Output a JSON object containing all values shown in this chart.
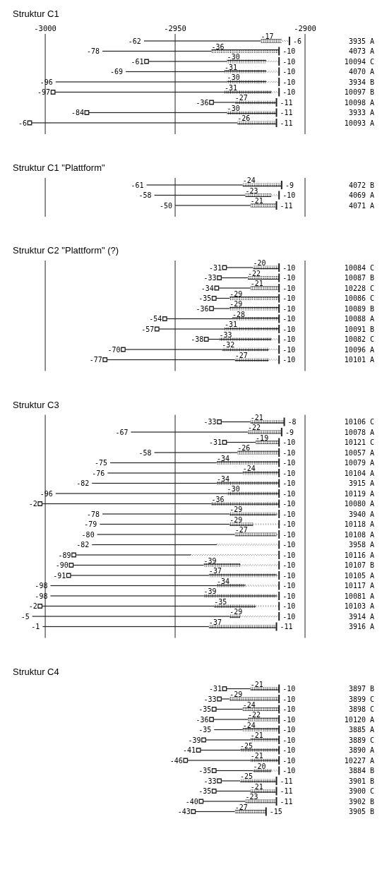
{
  "chart_data": [
    {
      "type": "bar",
      "title": "Struktur C1",
      "xlim": [
        -3006,
        -2900
      ],
      "orientation": "horizontal",
      "grid": "x",
      "xticks": [
        -3000,
        -2950,
        -2900
      ],
      "categories": [
        "3935 A",
        "4073 A",
        "10094 C",
        "4070 A",
        "3934 B",
        "10097 B",
        "10098 A",
        "3933 A",
        "10093 A"
      ],
      "series": [
        {
          "color": "#222222",
          "line_style": "solid",
          "base": [
            -2962,
            -2978,
            -2961,
            -2969,
            -2996,
            -2997,
            -2936,
            -2984,
            -3006
          ],
          "values": [
            45,
            42,
            31,
            38,
            66,
            66,
            9,
            54,
            80
          ]
        },
        {
          "color": "#222222",
          "marker": "cross",
          "base": [
            -2917,
            -2936,
            -2930,
            -2931,
            -2930,
            -2931,
            -2927,
            -2930,
            -2926
          ],
          "values": [
            8,
            26,
            15,
            16,
            15,
            18,
            16,
            19,
            15
          ]
        },
        {
          "color": "#222222",
          "line_style": "dotted",
          "base": [
            -2909,
            null,
            -2915,
            -2915,
            -2915,
            -2913,
            null,
            null,
            null
          ],
          "values": [
            3,
            null,
            5,
            5,
            5,
            3,
            null,
            null,
            null
          ]
        },
        {
          "type": "scatter",
          "color": "#222222",
          "marker": "square",
          "values": [
            null,
            null,
            -2961,
            null,
            null,
            -2997,
            -2936,
            -2984,
            -3006
          ]
        }
      ],
      "annotations": [
        {
          "text": "-62",
          "x": -2962,
          "y": "3935 A"
        },
        {
          "text": "-17",
          "x": -2917,
          "y": "3935 A"
        },
        {
          "text": "-6",
          "x": -2906,
          "y": "3935 A"
        },
        {
          "text": "-78",
          "x": -2978,
          "y": "4073 A"
        },
        {
          "text": "-36",
          "x": -2936,
          "y": "4073 A"
        },
        {
          "text": "-10",
          "x": -2910,
          "y": "4073 A"
        },
        {
          "text": "-61",
          "x": -2961,
          "y": "10094 C"
        },
        {
          "text": "-30",
          "x": -2930,
          "y": "10094 C"
        },
        {
          "text": "-10",
          "x": -2910,
          "y": "10094 C"
        },
        {
          "text": "-69",
          "x": -2969,
          "y": "4070 A"
        },
        {
          "text": "-31",
          "x": -2931,
          "y": "4070 A"
        },
        {
          "text": "-10",
          "x": -2910,
          "y": "4070 A"
        },
        {
          "text": "-96",
          "x": -2996,
          "y": "3934 B"
        },
        {
          "text": "-30",
          "x": -2930,
          "y": "3934 B"
        },
        {
          "text": "-10",
          "x": -2910,
          "y": "3934 B"
        },
        {
          "text": "-97",
          "x": -2997,
          "y": "10097 B"
        },
        {
          "text": "-31",
          "x": -2931,
          "y": "10097 B"
        },
        {
          "text": "-10",
          "x": -2910,
          "y": "10097 B"
        },
        {
          "text": "-36",
          "x": -2936,
          "y": "10098 A"
        },
        {
          "text": "-27",
          "x": -2927,
          "y": "10098 A"
        },
        {
          "text": "-11",
          "x": -2911,
          "y": "10098 A"
        },
        {
          "text": "-84",
          "x": -2984,
          "y": "3933 A"
        },
        {
          "text": "-30",
          "x": -2930,
          "y": "3933 A"
        },
        {
          "text": "-11",
          "x": -2911,
          "y": "3933 A"
        },
        {
          "text": "-6",
          "x": -3006,
          "y": "10093 A"
        },
        {
          "text": "-26",
          "x": -2926,
          "y": "10093 A"
        },
        {
          "text": "-11",
          "x": -2911,
          "y": "10093 A"
        }
      ]
    },
    {
      "type": "bar",
      "title": "Struktur C1 \"Plattform\"",
      "xlim": [
        -3000,
        -2900
      ],
      "orientation": "horizontal",
      "grid": "x",
      "tick_labels": "y",
      "xticks": [
        -3000,
        -2950,
        -2900
      ],
      "categories": [
        "4072 B",
        "4069 A",
        "4071 A"
      ],
      "series": [
        {
          "color": "#222222",
          "line_style": "solid",
          "base": [
            -2961,
            -2958,
            -2950
          ],
          "values": [
            37,
            35,
            29
          ]
        },
        {
          "color": "#222222",
          "marker": "cross",
          "base": [
            -2924,
            -2923,
            -2921
          ],
          "values": [
            15,
            10,
            10
          ]
        },
        {
          "color": "#222222",
          "line_style": "dotted",
          "base": [
            null,
            -2913,
            null
          ],
          "values": [
            null,
            3,
            null
          ]
        }
      ],
      "annotations": [
        {
          "text": "-61",
          "x": -2961,
          "y": "4072 B"
        },
        {
          "text": "-24",
          "x": -2924,
          "y": "4072 B"
        },
        {
          "text": "-9",
          "x": -2909,
          "y": "4072 B"
        },
        {
          "text": "-58",
          "x": -2958,
          "y": "4069 A"
        },
        {
          "text": "-23",
          "x": -2923,
          "y": "4069 A"
        },
        {
          "text": "-10",
          "x": -2910,
          "y": "4069 A"
        },
        {
          "text": "-50",
          "x": -2950,
          "y": "4071 A"
        },
        {
          "text": "-21",
          "x": -2921,
          "y": "4071 A"
        },
        {
          "text": "-11",
          "x": -2911,
          "y": "4071 A"
        }
      ]
    },
    {
      "type": "bar",
      "title": "Struktur C2 \"Plattform\" (?)",
      "xlim": [
        -3000,
        -2900
      ],
      "orientation": "horizontal",
      "grid": "x",
      "tick_labels": "y",
      "xticks": [
        -3000,
        -2950,
        -2900
      ],
      "categories": [
        "10084 C",
        "10087 B",
        "10228 C",
        "10086 C",
        "10089 B",
        "10088 A",
        "10091 B",
        "10082 C",
        "10096 A",
        "10101 A"
      ],
      "series": [
        {
          "color": "#222222",
          "line_style": "solid",
          "base": [
            -2931,
            -2933,
            -2934,
            -2935,
            -2936,
            -2954,
            -2957,
            -2938,
            -2970,
            -2977
          ],
          "values": [
            11,
            11,
            13,
            6,
            7,
            26,
            26,
            5,
            38,
            50
          ]
        },
        {
          "color": "#222222",
          "marker": "cross",
          "base": [
            -2920,
            -2922,
            -2921,
            -2929,
            -2929,
            -2928,
            -2931,
            -2933,
            -2932,
            -2927
          ],
          "values": [
            10,
            12,
            11,
            19,
            19,
            18,
            21,
            20,
            18,
            13
          ]
        },
        {
          "color": "#222222",
          "line_style": "dotted",
          "base": [
            null,
            null,
            null,
            null,
            null,
            null,
            null,
            -2913,
            -2914,
            -2914
          ],
          "values": [
            null,
            null,
            null,
            null,
            null,
            null,
            null,
            3,
            4,
            4
          ]
        },
        {
          "type": "scatter",
          "color": "#222222",
          "marker": "square",
          "values": [
            -2931,
            -2933,
            -2934,
            -2935,
            -2936,
            -2954,
            -2957,
            -2938,
            -2970,
            -2977
          ]
        }
      ],
      "annotations": [
        {
          "text": "-31",
          "x": -2931,
          "y": "10084 C"
        },
        {
          "text": "-20",
          "x": -2920,
          "y": "10084 C"
        },
        {
          "text": "-10",
          "x": -2910,
          "y": "10084 C"
        },
        {
          "text": "-33",
          "x": -2933,
          "y": "10087 B"
        },
        {
          "text": "-22",
          "x": -2922,
          "y": "10087 B"
        },
        {
          "text": "-10",
          "x": -2910,
          "y": "10087 B"
        },
        {
          "text": "-34",
          "x": -2934,
          "y": "10228 C"
        },
        {
          "text": "-21",
          "x": -2921,
          "y": "10228 C"
        },
        {
          "text": "-10",
          "x": -2910,
          "y": "10228 C"
        },
        {
          "text": "-35",
          "x": -2935,
          "y": "10086 C"
        },
        {
          "text": "-29",
          "x": -2929,
          "y": "10086 C"
        },
        {
          "text": "-10",
          "x": -2910,
          "y": "10086 C"
        },
        {
          "text": "-36",
          "x": -2936,
          "y": "10089 B"
        },
        {
          "text": "-29",
          "x": -2929,
          "y": "10089 B"
        },
        {
          "text": "-10",
          "x": -2910,
          "y": "10089 B"
        },
        {
          "text": "-54",
          "x": -2954,
          "y": "10088 A"
        },
        {
          "text": "-28",
          "x": -2928,
          "y": "10088 A"
        },
        {
          "text": "-10",
          "x": -2910,
          "y": "10088 A"
        },
        {
          "text": "-57",
          "x": -2957,
          "y": "10091 B"
        },
        {
          "text": "-31",
          "x": -2931,
          "y": "10091 B"
        },
        {
          "text": "-10",
          "x": -2910,
          "y": "10091 B"
        },
        {
          "text": "-38",
          "x": -2938,
          "y": "10082 C"
        },
        {
          "text": "-33",
          "x": -2933,
          "y": "10082 C"
        },
        {
          "text": "-10",
          "x": -2910,
          "y": "10082 C"
        },
        {
          "text": "-70",
          "x": -2970,
          "y": "10096 A"
        },
        {
          "text": "-32",
          "x": -2932,
          "y": "10096 A"
        },
        {
          "text": "-10",
          "x": -2910,
          "y": "10096 A"
        },
        {
          "text": "-77",
          "x": -2977,
          "y": "10101 A"
        },
        {
          "text": "-27",
          "x": -2927,
          "y": "10101 A"
        },
        {
          "text": "-10",
          "x": -2910,
          "y": "10101 A"
        }
      ]
    },
    {
      "type": "bar",
      "title": "Struktur C3",
      "xlim": [
        -3005,
        -2900
      ],
      "orientation": "horizontal",
      "grid": "x",
      "tick_labels": "y",
      "xticks": [
        -3000,
        -2950,
        -2900
      ],
      "categories": [
        "10106 C",
        "10078 A",
        "10121 C",
        "10057 A",
        "10079 A",
        "10104 A",
        "3915 A",
        "10119 A",
        "10080 A",
        "3940 A",
        "10118 A",
        "10108 A",
        "3958 A",
        "10116 A",
        "10107 B",
        "10105 A",
        "10117 A",
        "10081 A",
        "10103 A",
        "3914 A",
        "3916 A"
      ],
      "series": [
        {
          "color": "#222222",
          "line_style": "solid",
          "base": [
            -2933,
            -2967,
            -2931,
            -2958,
            -2975,
            -2976,
            -2982,
            -2996,
            -3002,
            -2978,
            -2979,
            -2980,
            -2982,
            -2989,
            -2990,
            -2991,
            -2998,
            -2998,
            -3002,
            -3005,
            -3001
          ],
          "values": [
            12,
            45,
            12,
            32,
            41,
            52,
            48,
            66,
            66,
            49,
            50,
            53,
            48,
            45,
            51,
            54,
            64,
            59,
            67,
            76,
            64
          ]
        },
        {
          "color": "#222222",
          "marker": "cross",
          "base": [
            -2921,
            -2922,
            -2919,
            -2926,
            -2934,
            -2924,
            -2934,
            -2930,
            -2936,
            -2929,
            -2929,
            -2927,
            null,
            null,
            -2939,
            -2937,
            -2934,
            -2939,
            -2935,
            -2929,
            -2937
          ],
          "values": [
            13,
            13,
            9,
            16,
            24,
            14,
            24,
            20,
            26,
            18,
            9,
            16,
            null,
            null,
            14,
            26,
            11,
            28,
            16,
            4,
            26
          ]
        },
        {
          "color": "#222222",
          "line_style": "dotted",
          "base": [
            null,
            null,
            null,
            null,
            null,
            null,
            null,
            null,
            null,
            -2911,
            -2920,
            -2911,
            -2934,
            -2944,
            -2925,
            -2911,
            -2923,
            -2911,
            -2919,
            -2925,
            null
          ],
          "values": [
            null,
            null,
            null,
            null,
            null,
            null,
            null,
            null,
            null,
            1,
            10,
            1,
            24,
            34,
            15,
            1,
            13,
            1,
            9,
            15,
            null
          ]
        },
        {
          "type": "scatter",
          "color": "#222222",
          "marker": "square",
          "values": [
            -2933,
            null,
            -2931,
            null,
            null,
            null,
            null,
            null,
            -3002,
            null,
            null,
            null,
            null,
            -2989,
            -2990,
            -2991,
            null,
            null,
            -3002,
            null,
            null
          ]
        }
      ],
      "annotations": [
        {
          "text": "-33",
          "x": -2933,
          "y": "10106 C"
        },
        {
          "text": "-21",
          "x": -2921,
          "y": "10106 C"
        },
        {
          "text": "-8",
          "x": -2908,
          "y": "10106 C"
        },
        {
          "text": "-67",
          "x": -2967,
          "y": "10078 A"
        },
        {
          "text": "-22",
          "x": -2922,
          "y": "10078 A"
        },
        {
          "text": "-9",
          "x": -2909,
          "y": "10078 A"
        },
        {
          "text": "-31",
          "x": -2931,
          "y": "10121 C"
        },
        {
          "text": "-19",
          "x": -2919,
          "y": "10121 C"
        },
        {
          "text": "-10",
          "x": -2910,
          "y": "10121 C"
        },
        {
          "text": "-58",
          "x": -2958,
          "y": "10057 A"
        },
        {
          "text": "-26",
          "x": -2926,
          "y": "10057 A"
        },
        {
          "text": "-10",
          "x": -2910,
          "y": "10057 A"
        },
        {
          "text": "-75",
          "x": -2975,
          "y": "10079 A"
        },
        {
          "text": "-34",
          "x": -2934,
          "y": "10079 A"
        },
        {
          "text": "-10",
          "x": -2910,
          "y": "10079 A"
        },
        {
          "text": "-76",
          "x": -2976,
          "y": "10104 A"
        },
        {
          "text": "-24",
          "x": -2924,
          "y": "10104 A"
        },
        {
          "text": "-10",
          "x": -2910,
          "y": "10104 A"
        },
        {
          "text": "-82",
          "x": -2982,
          "y": "3915 A"
        },
        {
          "text": "-34",
          "x": -2934,
          "y": "3915 A"
        },
        {
          "text": "-10",
          "x": -2910,
          "y": "3915 A"
        },
        {
          "text": "-96",
          "x": -2996,
          "y": "10119 A"
        },
        {
          "text": "-30",
          "x": -2930,
          "y": "10119 A"
        },
        {
          "text": "-10",
          "x": -2910,
          "y": "10119 A"
        },
        {
          "text": "-2",
          "x": -3002,
          "y": "10080 A"
        },
        {
          "text": "-36",
          "x": -2936,
          "y": "10080 A"
        },
        {
          "text": "-10",
          "x": -2910,
          "y": "10080 A"
        },
        {
          "text": "-78",
          "x": -2978,
          "y": "3940 A"
        },
        {
          "text": "-29",
          "x": -2929,
          "y": "3940 A"
        },
        {
          "text": "-10",
          "x": -2910,
          "y": "3940 A"
        },
        {
          "text": "-79",
          "x": -2979,
          "y": "10118 A"
        },
        {
          "text": "-29",
          "x": -2929,
          "y": "10118 A"
        },
        {
          "text": "-10",
          "x": -2910,
          "y": "10118 A"
        },
        {
          "text": "-80",
          "x": -2980,
          "y": "10108 A"
        },
        {
          "text": "-27",
          "x": -2927,
          "y": "10108 A"
        },
        {
          "text": "-10",
          "x": -2910,
          "y": "10108 A"
        },
        {
          "text": "-82",
          "x": -2982,
          "y": "3958 A"
        },
        {
          "text": "-10",
          "x": -2910,
          "y": "3958 A"
        },
        {
          "text": "-89",
          "x": -2989,
          "y": "10116 A"
        },
        {
          "text": "-10",
          "x": -2910,
          "y": "10116 A"
        },
        {
          "text": "-90",
          "x": -2990,
          "y": "10107 B"
        },
        {
          "text": "-39",
          "x": -2939,
          "y": "10107 B"
        },
        {
          "text": "-10",
          "x": -2910,
          "y": "10107 B"
        },
        {
          "text": "-91",
          "x": -2991,
          "y": "10105 A"
        },
        {
          "text": "-37",
          "x": -2937,
          "y": "10105 A"
        },
        {
          "text": "-10",
          "x": -2910,
          "y": "10105 A"
        },
        {
          "text": "-98",
          "x": -2998,
          "y": "10117 A"
        },
        {
          "text": "-34",
          "x": -2934,
          "y": "10117 A"
        },
        {
          "text": "-10",
          "x": -2910,
          "y": "10117 A"
        },
        {
          "text": "-98",
          "x": -2998,
          "y": "10081 A"
        },
        {
          "text": "-39",
          "x": -2939,
          "y": "10081 A"
        },
        {
          "text": "-10",
          "x": -2910,
          "y": "10081 A"
        },
        {
          "text": "-2",
          "x": -3002,
          "y": "10103 A"
        },
        {
          "text": "-35",
          "x": -2935,
          "y": "10103 A"
        },
        {
          "text": "-10",
          "x": -2910,
          "y": "10103 A"
        },
        {
          "text": "-5",
          "x": -3005,
          "y": "3914 A"
        },
        {
          "text": "-29",
          "x": -2929,
          "y": "3914 A"
        },
        {
          "text": "-10",
          "x": -2910,
          "y": "3914 A"
        },
        {
          "text": "-1",
          "x": -3001,
          "y": "3916 A"
        },
        {
          "text": "-37",
          "x": -2937,
          "y": "3916 A"
        },
        {
          "text": "-11",
          "x": -2911,
          "y": "3916 A"
        }
      ]
    },
    {
      "type": "bar",
      "title": "Struktur C4",
      "xlim": [
        -3000,
        -2900
      ],
      "orientation": "horizontal",
      "tick_labels": "y",
      "xticks": [
        -3000,
        -2950,
        -2900
      ],
      "categories": [
        "3897 B",
        "3899 C",
        "3898 C",
        "10120 A",
        "3885 A",
        "3889 C",
        "3890 A",
        "10227 A",
        "3884 B",
        "3901 B",
        "3900 C",
        "3902 B",
        "3905 B"
      ],
      "series": [
        {
          "color": "#222222",
          "line_style": "solid",
          "base": [
            -2931,
            -2933,
            -2935,
            -2936,
            -2935,
            -2939,
            -2941,
            -2946,
            -2935,
            -2933,
            -2935,
            -2940,
            -2943
          ],
          "values": [
            10,
            4,
            11,
            14,
            11,
            18,
            16,
            25,
            15,
            8,
            14,
            17,
            16
          ]
        },
        {
          "color": "#222222",
          "marker": "cross",
          "base": [
            -2921,
            -2929,
            -2924,
            -2922,
            -2924,
            -2921,
            -2925,
            -2921,
            -2920,
            -2925,
            -2921,
            -2923,
            -2927
          ],
          "values": [
            11,
            19,
            14,
            12,
            14,
            11,
            15,
            11,
            7,
            14,
            10,
            12,
            12
          ]
        },
        {
          "color": "#222222",
          "line_style": "dotted",
          "base": [
            null,
            null,
            null,
            null,
            null,
            null,
            null,
            null,
            -2913,
            null,
            null,
            null,
            null
          ],
          "values": [
            null,
            null,
            null,
            null,
            null,
            null,
            null,
            null,
            3,
            null,
            null,
            null,
            null
          ]
        },
        {
          "type": "scatter",
          "color": "#222222",
          "marker": "square",
          "values": [
            -2931,
            -2933,
            -2935,
            -2936,
            null,
            -2939,
            -2941,
            -2946,
            -2935,
            -2933,
            -2935,
            -2940,
            -2943
          ]
        }
      ],
      "annotations": [
        {
          "text": "-31",
          "x": -2931,
          "y": "3897 B"
        },
        {
          "text": "-21",
          "x": -2921,
          "y": "3897 B"
        },
        {
          "text": "-10",
          "x": -2910,
          "y": "3897 B"
        },
        {
          "text": "-33",
          "x": -2933,
          "y": "3899 C"
        },
        {
          "text": "-29",
          "x": -2929,
          "y": "3899 C"
        },
        {
          "text": "-10",
          "x": -2910,
          "y": "3899 C"
        },
        {
          "text": "-35",
          "x": -2935,
          "y": "3898 C"
        },
        {
          "text": "-24",
          "x": -2924,
          "y": "3898 C"
        },
        {
          "text": "-10",
          "x": -2910,
          "y": "3898 C"
        },
        {
          "text": "-36",
          "x": -2936,
          "y": "10120 A"
        },
        {
          "text": "-22",
          "x": -2922,
          "y": "10120 A"
        },
        {
          "text": "-10",
          "x": -2910,
          "y": "10120 A"
        },
        {
          "text": "-35",
          "x": -2935,
          "y": "3885 A"
        },
        {
          "text": "-24",
          "x": -2924,
          "y": "3885 A"
        },
        {
          "text": "-10",
          "x": -2910,
          "y": "3885 A"
        },
        {
          "text": "-39",
          "x": -2939,
          "y": "3889 C"
        },
        {
          "text": "-21",
          "x": -2921,
          "y": "3889 C"
        },
        {
          "text": "-10",
          "x": -2910,
          "y": "3889 C"
        },
        {
          "text": "-41",
          "x": -2941,
          "y": "3890 A"
        },
        {
          "text": "-25",
          "x": -2925,
          "y": "3890 A"
        },
        {
          "text": "-10",
          "x": -2910,
          "y": "3890 A"
        },
        {
          "text": "-46",
          "x": -2946,
          "y": "10227 A"
        },
        {
          "text": "-21",
          "x": -2921,
          "y": "10227 A"
        },
        {
          "text": "-10",
          "x": -2910,
          "y": "10227 A"
        },
        {
          "text": "-35",
          "x": -2935,
          "y": "3884 B"
        },
        {
          "text": "-20",
          "x": -2920,
          "y": "3884 B"
        },
        {
          "text": "-10",
          "x": -2910,
          "y": "3884 B"
        },
        {
          "text": "-33",
          "x": -2933,
          "y": "3901 B"
        },
        {
          "text": "-25",
          "x": -2925,
          "y": "3901 B"
        },
        {
          "text": "-11",
          "x": -2911,
          "y": "3901 B"
        },
        {
          "text": "-35",
          "x": -2935,
          "y": "3900 C"
        },
        {
          "text": "-21",
          "x": -2921,
          "y": "3900 C"
        },
        {
          "text": "-11",
          "x": -2911,
          "y": "3900 C"
        },
        {
          "text": "-40",
          "x": -2940,
          "y": "3902 B"
        },
        {
          "text": "-23",
          "x": -2923,
          "y": "3902 B"
        },
        {
          "text": "-11",
          "x": -2911,
          "y": "3902 B"
        },
        {
          "text": "-43",
          "x": -2943,
          "y": "3905 B"
        },
        {
          "text": "-27",
          "x": -2927,
          "y": "3905 B"
        },
        {
          "text": "-15",
          "x": -2915,
          "y": "3905 B"
        }
      ]
    }
  ]
}
